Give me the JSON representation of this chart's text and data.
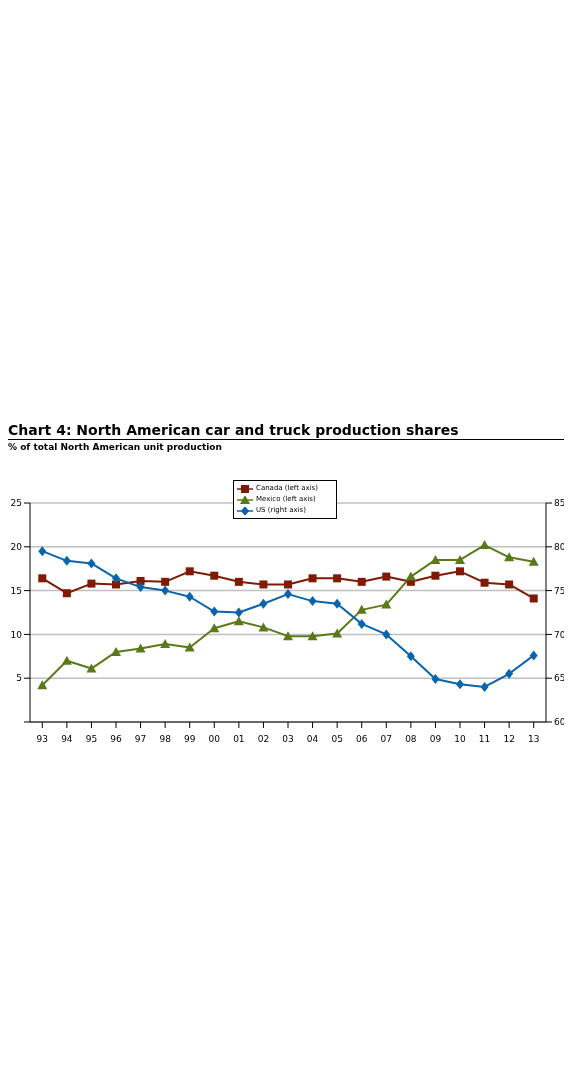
{
  "chart_data": {
    "type": "line",
    "title": "Chart 4: North American car and truck production shares",
    "subtitle": "% of total North American unit production",
    "categories": [
      "93",
      "94",
      "95",
      "96",
      "97",
      "98",
      "99",
      "00",
      "01",
      "02",
      "03",
      "04",
      "05",
      "06",
      "07",
      "08",
      "09",
      "10",
      "11",
      "12",
      "13"
    ],
    "series": [
      {
        "name": "Canada (left axis)",
        "color": "#7f1a05",
        "marker": "square",
        "values": [
          16.4,
          14.7,
          15.8,
          15.7,
          16.1,
          16.0,
          17.2,
          16.7,
          16.0,
          15.7,
          15.7,
          16.4,
          16.4,
          16.0,
          16.6,
          16.0,
          16.7,
          17.2,
          15.9,
          15.7,
          14.1
        ]
      },
      {
        "name": "Mexico (left axis)",
        "color": "#5a7a1a",
        "marker": "triangle",
        "values": [
          4.2,
          7.0,
          6.1,
          8.0,
          8.4,
          8.9,
          8.5,
          10.7,
          11.5,
          10.8,
          9.8,
          9.8,
          10.1,
          12.8,
          13.4,
          16.6,
          18.5,
          18.5,
          20.2,
          18.8,
          18.3
        ]
      },
      {
        "name": "US (right axis)",
        "color": "#0a64ac",
        "marker": "diamond",
        "axis": "y2",
        "values": [
          79.5,
          78.4,
          78.1,
          76.4,
          75.4,
          75.0,
          74.3,
          72.6,
          72.5,
          73.5,
          74.6,
          73.8,
          73.5,
          71.2,
          70.0,
          67.5,
          64.9,
          64.3,
          64.0,
          65.5,
          67.6
        ]
      }
    ],
    "ylim": [
      0,
      25
    ],
    "yticks": [
      {
        "value": 0,
        "label": null
      },
      5,
      10,
      15,
      20,
      25
    ],
    "y2lim": [
      60,
      85
    ],
    "y2ticks": [
      60,
      65,
      70,
      75,
      80,
      85
    ],
    "grid": "y",
    "legend": "top",
    "line_style": "solid"
  }
}
